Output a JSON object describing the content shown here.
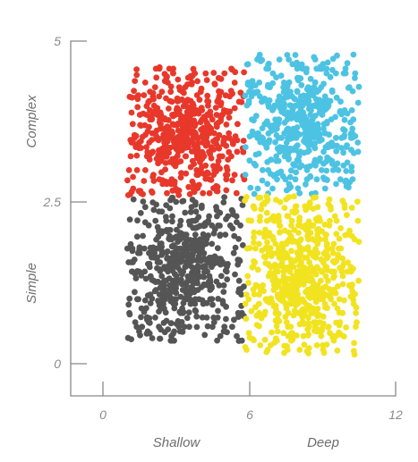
{
  "chart_data": {
    "type": "scatter",
    "title": "",
    "xlim": [
      0,
      12
    ],
    "ylim": [
      0,
      5
    ],
    "x_ticks": [
      "0",
      "6",
      "12"
    ],
    "y_ticks": [
      "0",
      "2.5",
      "5"
    ],
    "x_category_labels": [
      "Shallow",
      "Deep"
    ],
    "y_category_labels": [
      "Simple",
      "Complex"
    ],
    "grid": false,
    "legend": "none",
    "colors": {
      "shallow_complex": "#e8382b",
      "deep_complex": "#4dc3e3",
      "shallow_simple": "#555555",
      "deep_simple": "#f2e320"
    },
    "series": [
      {
        "quadrant": "shallow-complex",
        "color": "#e8382b",
        "count": 520,
        "x_range": [
          1.0,
          5.8
        ],
        "y_range": [
          2.6,
          4.6
        ]
      },
      {
        "quadrant": "deep-complex",
        "color": "#4dc3e3",
        "count": 520,
        "x_range": [
          5.8,
          10.5
        ],
        "y_range": [
          2.6,
          4.8
        ]
      },
      {
        "quadrant": "shallow-simple",
        "color": "#555555",
        "count": 560,
        "x_range": [
          1.0,
          5.8
        ],
        "y_range": [
          0.35,
          2.6
        ]
      },
      {
        "quadrant": "deep-simple",
        "color": "#f2e320",
        "count": 620,
        "x_range": [
          5.8,
          10.5
        ],
        "y_range": [
          0.15,
          2.6
        ]
      }
    ]
  }
}
